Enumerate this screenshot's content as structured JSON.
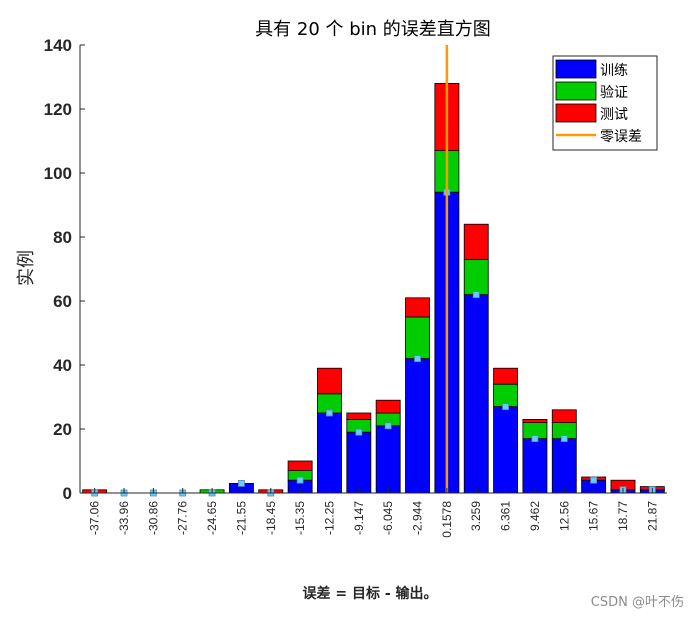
{
  "watermark": "CSDN @叶不伤",
  "chart_data": {
    "type": "bar",
    "stacked": true,
    "title": "具有 20 个 bin 的误差直方图",
    "xlabel": "误差 = 目标 - 输出。",
    "ylabel": "实例",
    "ylim": [
      0,
      140
    ],
    "yticks": [
      "0",
      "20",
      "40",
      "60",
      "80",
      "100",
      "120",
      "140"
    ],
    "categories": [
      "-37.06",
      "-33.96",
      "-30.86",
      "-27.76",
      "-24.65",
      "-21.55",
      "-18.45",
      "-15.35",
      "-12.25",
      "-9.147",
      "-6.045",
      "-2.944",
      "0.1578",
      "3.259",
      "6.361",
      "9.462",
      "12.56",
      "15.67",
      "18.77",
      "21.87"
    ],
    "series": [
      {
        "name": "训练",
        "color": "#0000ff",
        "values": [
          0,
          0,
          0,
          0,
          0,
          3,
          0,
          4,
          25,
          19,
          21,
          42,
          94,
          62,
          27,
          17,
          17,
          4,
          1,
          1
        ]
      },
      {
        "name": "验证",
        "color": "#00cc00",
        "values": [
          0,
          0,
          0,
          0,
          1,
          0,
          0,
          3,
          6,
          4,
          4,
          13,
          13,
          11,
          7,
          5,
          5,
          0,
          0,
          0
        ]
      },
      {
        "name": "测试",
        "color": "#ff0000",
        "values": [
          1,
          0,
          0,
          0,
          0,
          0,
          1,
          3,
          8,
          2,
          4,
          6,
          21,
          11,
          5,
          1,
          4,
          1,
          3,
          1
        ]
      }
    ],
    "reference_line": {
      "name": "零误差",
      "color": "#ff9900",
      "x_category": "0.1578"
    },
    "legend_position": "top-right"
  }
}
